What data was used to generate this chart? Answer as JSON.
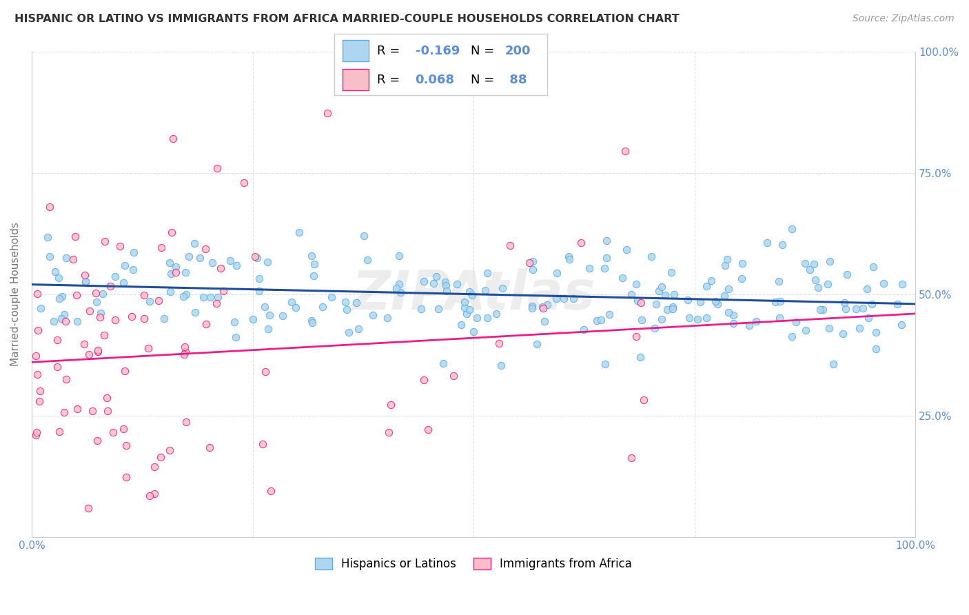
{
  "title": "HISPANIC OR LATINO VS IMMIGRANTS FROM AFRICA MARRIED-COUPLE HOUSEHOLDS CORRELATION CHART",
  "source": "Source: ZipAtlas.com",
  "ylabel": "Married-couple Households",
  "watermark": "ZIPAtlas",
  "blue_color": "#AED6F1",
  "blue_edge_color": "#5DADE2",
  "pink_color": "#F9BEC7",
  "pink_edge_color": "#E91E8C",
  "blue_line_color": "#1F4E9C",
  "pink_line_color": "#E91E8C",
  "background_color": "#FFFFFF",
  "grid_color": "#CCCCCC",
  "xlim": [
    0,
    1
  ],
  "ylim": [
    0,
    1
  ],
  "title_color": "#333333",
  "source_color": "#999999",
  "axis_label_color": "#555555",
  "tick_label_color": "#5B8ED6",
  "legend_text_color": "#5B8ED6",
  "blue_r": -0.169,
  "pink_r": 0.068,
  "blue_n": 200,
  "pink_n": 88,
  "blue_r_str": "-0.169",
  "blue_n_str": "200",
  "pink_r_str": "0.068",
  "pink_n_str": "88"
}
